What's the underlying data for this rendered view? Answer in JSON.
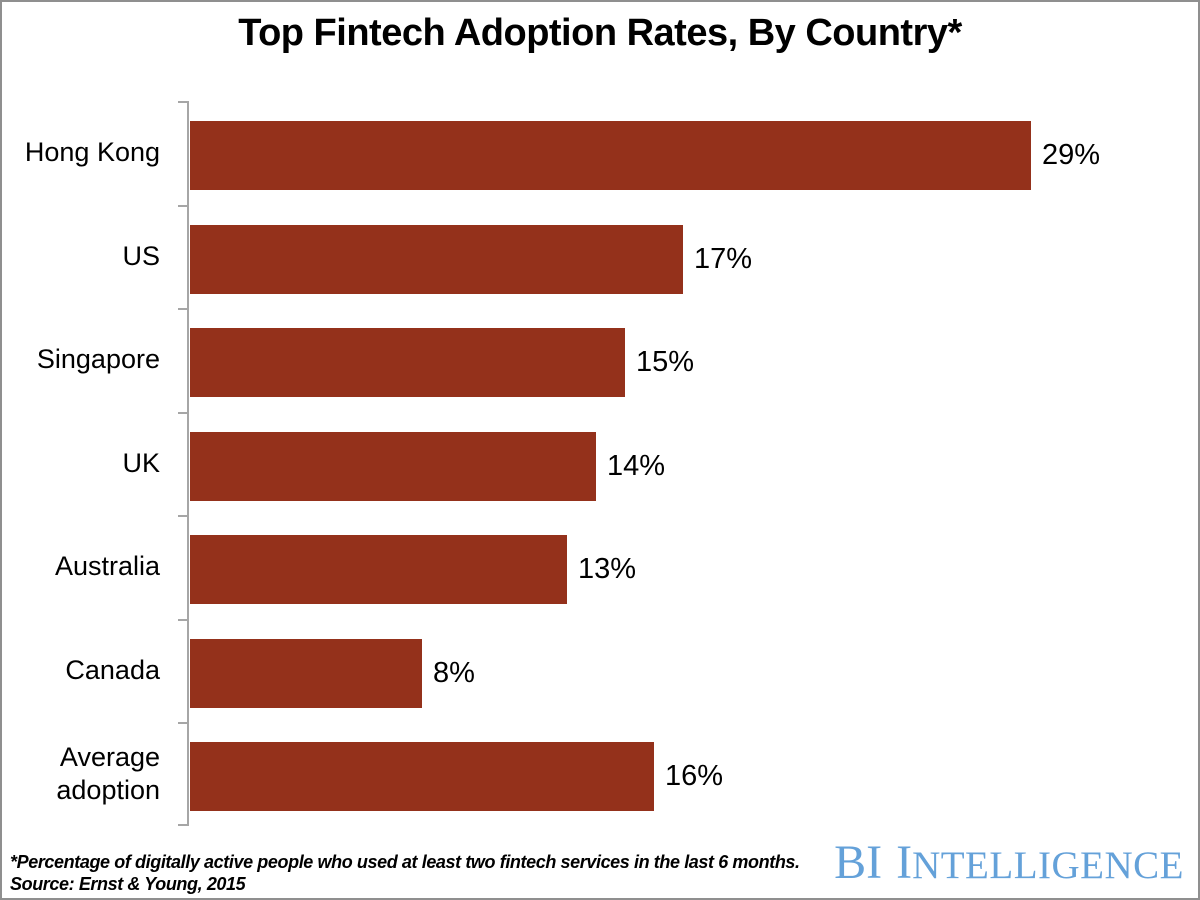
{
  "title": "Top Fintech Adoption Rates, By Country*",
  "chart_data": {
    "type": "bar",
    "orientation": "horizontal",
    "title": "Top Fintech Adoption Rates, By Country*",
    "categories": [
      "Hong Kong",
      "US",
      "Singapore",
      "UK",
      "Australia",
      "Canada",
      "Average adoption"
    ],
    "values": [
      29,
      17,
      15,
      14,
      13,
      8,
      16
    ],
    "value_labels": [
      "29%",
      "17%",
      "15%",
      "14%",
      "13%",
      "8%",
      "16%"
    ],
    "xlabel": "",
    "ylabel": "",
    "xlim": [
      0,
      34
    ],
    "grid": false,
    "legend": false,
    "bar_color": "#94311b",
    "axis_color": "#a6a6a6"
  },
  "footnote": {
    "line1": "*Percentage of digitally active people who used at least two fintech services in the last 6 months.",
    "line2": "Source: Ernst & Young, 2015"
  },
  "logo": {
    "part1": "BI",
    "part2_initial": "I",
    "part2_rest": "NTELLIGENCE",
    "color": "#64a1d9"
  }
}
